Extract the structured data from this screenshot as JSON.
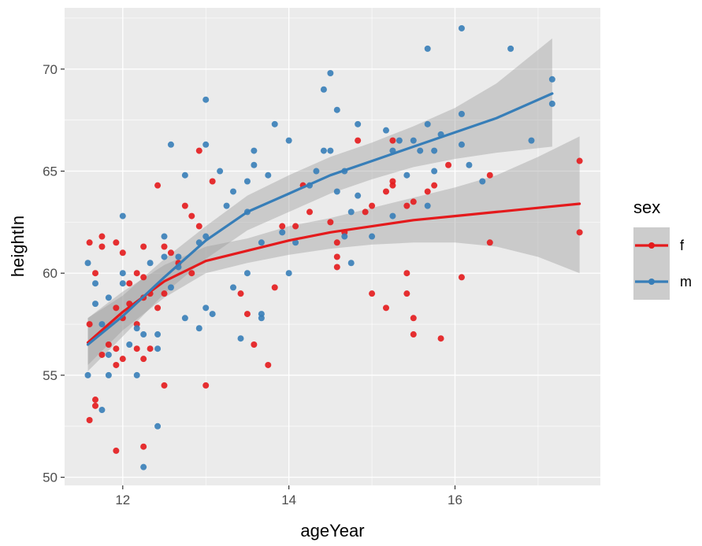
{
  "chart_data": {
    "type": "scatter",
    "title": "",
    "xlabel": "ageYear",
    "ylabel": "heightIn",
    "xlim": [
      11.3,
      17.75
    ],
    "ylim": [
      49.6,
      73
    ],
    "x_ticks": [
      12,
      14,
      16
    ],
    "x_tick_labels": [
      "12",
      "14",
      "16"
    ],
    "y_ticks": [
      50,
      55,
      60,
      65,
      70
    ],
    "y_tick_labels": [
      "50",
      "55",
      "60",
      "65",
      "70"
    ],
    "grid": true,
    "legend": {
      "title": "sex",
      "placement": "right"
    },
    "series": [
      {
        "name": "f",
        "color": "#e41a1c",
        "points": [
          [
            11.6,
            61.5
          ],
          [
            11.6,
            57.5
          ],
          [
            11.6,
            52.8
          ],
          [
            11.67,
            60.0
          ],
          [
            11.67,
            53.8
          ],
          [
            11.67,
            53.5
          ],
          [
            11.75,
            61.8
          ],
          [
            11.75,
            61.3
          ],
          [
            11.75,
            56.0
          ],
          [
            11.83,
            56.5
          ],
          [
            11.92,
            61.5
          ],
          [
            11.92,
            58.3
          ],
          [
            11.92,
            56.3
          ],
          [
            11.92,
            55.5
          ],
          [
            11.92,
            51.3
          ],
          [
            12.0,
            61.0
          ],
          [
            12.0,
            57.8
          ],
          [
            12.0,
            55.8
          ],
          [
            12.08,
            59.5
          ],
          [
            12.08,
            58.5
          ],
          [
            12.17,
            60.0
          ],
          [
            12.17,
            57.5
          ],
          [
            12.17,
            56.3
          ],
          [
            12.25,
            61.3
          ],
          [
            12.25,
            59.8
          ],
          [
            12.25,
            58.8
          ],
          [
            12.25,
            55.8
          ],
          [
            12.25,
            51.5
          ],
          [
            12.33,
            59.0
          ],
          [
            12.33,
            56.3
          ],
          [
            12.42,
            64.3
          ],
          [
            12.42,
            58.3
          ],
          [
            12.5,
            61.3
          ],
          [
            12.5,
            59.0
          ],
          [
            12.5,
            54.5
          ],
          [
            12.58,
            61.0
          ],
          [
            12.67,
            60.5
          ],
          [
            12.75,
            63.3
          ],
          [
            12.83,
            62.8
          ],
          [
            12.83,
            60.0
          ],
          [
            12.92,
            66.0
          ],
          [
            12.92,
            62.3
          ],
          [
            13.0,
            54.5
          ],
          [
            13.08,
            64.5
          ],
          [
            13.42,
            59.0
          ],
          [
            13.5,
            58.0
          ],
          [
            13.58,
            56.5
          ],
          [
            13.75,
            55.5
          ],
          [
            13.83,
            59.3
          ],
          [
            13.92,
            62.3
          ],
          [
            14.08,
            62.3
          ],
          [
            14.17,
            64.3
          ],
          [
            14.25,
            63.0
          ],
          [
            14.5,
            62.5
          ],
          [
            14.58,
            61.5
          ],
          [
            14.58,
            60.8
          ],
          [
            14.58,
            60.3
          ],
          [
            14.67,
            62.0
          ],
          [
            14.83,
            66.5
          ],
          [
            14.92,
            63.0
          ],
          [
            15.0,
            63.3
          ],
          [
            15.0,
            59.0
          ],
          [
            15.17,
            64.0
          ],
          [
            15.17,
            58.3
          ],
          [
            15.25,
            66.5
          ],
          [
            15.25,
            64.5
          ],
          [
            15.25,
            64.3
          ],
          [
            15.42,
            63.3
          ],
          [
            15.42,
            60.0
          ],
          [
            15.42,
            59.0
          ],
          [
            15.5,
            63.5
          ],
          [
            15.5,
            57.8
          ],
          [
            15.5,
            57.0
          ],
          [
            15.67,
            64.0
          ],
          [
            15.75,
            64.3
          ],
          [
            15.83,
            56.8
          ],
          [
            15.92,
            65.3
          ],
          [
            16.08,
            59.8
          ],
          [
            16.42,
            64.8
          ],
          [
            16.42,
            61.5
          ],
          [
            17.5,
            65.5
          ],
          [
            17.5,
            62.0
          ]
        ],
        "smooth": [
          [
            11.58,
            56.6
          ],
          [
            12.0,
            58.1
          ],
          [
            12.5,
            59.6
          ],
          [
            13.0,
            60.6
          ],
          [
            13.5,
            61.1
          ],
          [
            14.0,
            61.6
          ],
          [
            14.5,
            62.0
          ],
          [
            15.0,
            62.3
          ],
          [
            15.5,
            62.6
          ],
          [
            16.0,
            62.8
          ],
          [
            16.5,
            63.0
          ],
          [
            17.0,
            63.2
          ],
          [
            17.5,
            63.4
          ]
        ],
        "band": [
          [
            11.58,
            55.5,
            57.8
          ],
          [
            12.0,
            57.2,
            59.1
          ],
          [
            12.5,
            58.8,
            60.4
          ],
          [
            13.0,
            60.0,
            61.3
          ],
          [
            13.5,
            60.5,
            61.7
          ],
          [
            14.0,
            60.9,
            62.3
          ],
          [
            14.5,
            61.2,
            62.7
          ],
          [
            15.0,
            61.4,
            63.2
          ],
          [
            15.5,
            61.5,
            63.7
          ],
          [
            16.0,
            61.5,
            64.2
          ],
          [
            16.5,
            61.3,
            64.8
          ],
          [
            17.0,
            60.8,
            65.7
          ],
          [
            17.5,
            60.0,
            66.7
          ]
        ]
      },
      {
        "name": "m",
        "color": "#377eb8",
        "points": [
          [
            11.58,
            60.5
          ],
          [
            11.58,
            55.0
          ],
          [
            11.67,
            59.5
          ],
          [
            11.67,
            58.5
          ],
          [
            11.75,
            57.5
          ],
          [
            11.75,
            53.3
          ],
          [
            11.83,
            58.8
          ],
          [
            11.83,
            56.0
          ],
          [
            11.83,
            55.0
          ],
          [
            12.0,
            62.8
          ],
          [
            12.0,
            60.0
          ],
          [
            12.0,
            59.5
          ],
          [
            12.08,
            56.5
          ],
          [
            12.17,
            57.3
          ],
          [
            12.17,
            55.0
          ],
          [
            12.25,
            57.0
          ],
          [
            12.25,
            50.5
          ],
          [
            12.33,
            60.5
          ],
          [
            12.42,
            57.0
          ],
          [
            12.42,
            56.3
          ],
          [
            12.42,
            52.5
          ],
          [
            12.5,
            61.8
          ],
          [
            12.5,
            60.8
          ],
          [
            12.58,
            66.3
          ],
          [
            12.58,
            59.3
          ],
          [
            12.67,
            60.8
          ],
          [
            12.67,
            60.3
          ],
          [
            12.75,
            64.8
          ],
          [
            12.75,
            57.8
          ],
          [
            12.92,
            61.5
          ],
          [
            12.92,
            57.3
          ],
          [
            13.0,
            68.5
          ],
          [
            13.0,
            66.3
          ],
          [
            13.0,
            61.8
          ],
          [
            13.0,
            58.3
          ],
          [
            13.08,
            58.0
          ],
          [
            13.17,
            65.0
          ],
          [
            13.25,
            63.3
          ],
          [
            13.33,
            64.0
          ],
          [
            13.33,
            59.3
          ],
          [
            13.42,
            56.8
          ],
          [
            13.5,
            64.5
          ],
          [
            13.5,
            63.0
          ],
          [
            13.5,
            60.0
          ],
          [
            13.58,
            66.0
          ],
          [
            13.58,
            65.3
          ],
          [
            13.67,
            61.5
          ],
          [
            13.67,
            58.0
          ],
          [
            13.67,
            57.8
          ],
          [
            13.75,
            64.8
          ],
          [
            13.83,
            67.3
          ],
          [
            13.92,
            62.0
          ],
          [
            14.0,
            66.5
          ],
          [
            14.0,
            60.0
          ],
          [
            14.08,
            61.5
          ],
          [
            14.25,
            64.3
          ],
          [
            14.33,
            65.0
          ],
          [
            14.42,
            69.0
          ],
          [
            14.42,
            66.0
          ],
          [
            14.5,
            69.8
          ],
          [
            14.5,
            66.0
          ],
          [
            14.58,
            68.0
          ],
          [
            14.58,
            64.0
          ],
          [
            14.67,
            65.0
          ],
          [
            14.67,
            61.8
          ],
          [
            14.75,
            63.0
          ],
          [
            14.75,
            60.5
          ],
          [
            14.83,
            67.3
          ],
          [
            14.83,
            63.8
          ],
          [
            15.0,
            61.8
          ],
          [
            15.17,
            67.0
          ],
          [
            15.25,
            66.0
          ],
          [
            15.25,
            62.8
          ],
          [
            15.33,
            66.5
          ],
          [
            15.42,
            64.8
          ],
          [
            15.5,
            66.5
          ],
          [
            15.58,
            66.0
          ],
          [
            15.67,
            71.0
          ],
          [
            15.67,
            67.3
          ],
          [
            15.67,
            63.3
          ],
          [
            15.75,
            66.0
          ],
          [
            15.75,
            65.0
          ],
          [
            15.83,
            66.8
          ],
          [
            16.08,
            72.0
          ],
          [
            16.08,
            67.8
          ],
          [
            16.08,
            66.3
          ],
          [
            16.17,
            65.3
          ],
          [
            16.33,
            64.5
          ],
          [
            16.67,
            71.0
          ],
          [
            16.92,
            66.5
          ],
          [
            17.17,
            69.5
          ],
          [
            17.17,
            68.3
          ]
        ],
        "smooth": [
          [
            11.58,
            56.5
          ],
          [
            12.0,
            57.9
          ],
          [
            12.5,
            59.8
          ],
          [
            13.0,
            61.6
          ],
          [
            13.5,
            63.0
          ],
          [
            14.0,
            63.9
          ],
          [
            14.5,
            64.8
          ],
          [
            15.0,
            65.5
          ],
          [
            15.5,
            66.2
          ],
          [
            16.0,
            66.9
          ],
          [
            16.5,
            67.6
          ],
          [
            17.17,
            68.8
          ]
        ],
        "band": [
          [
            11.58,
            55.2,
            57.8
          ],
          [
            12.0,
            56.9,
            58.9
          ],
          [
            12.5,
            59.0,
            60.7
          ],
          [
            13.0,
            60.7,
            62.3
          ],
          [
            13.5,
            62.1,
            63.8
          ],
          [
            14.0,
            63.0,
            64.8
          ],
          [
            14.5,
            63.9,
            65.7
          ],
          [
            15.0,
            64.6,
            66.4
          ],
          [
            15.5,
            65.2,
            67.2
          ],
          [
            16.0,
            65.6,
            68.1
          ],
          [
            16.5,
            65.9,
            69.3
          ],
          [
            17.17,
            66.2,
            71.5
          ]
        ]
      }
    ]
  }
}
